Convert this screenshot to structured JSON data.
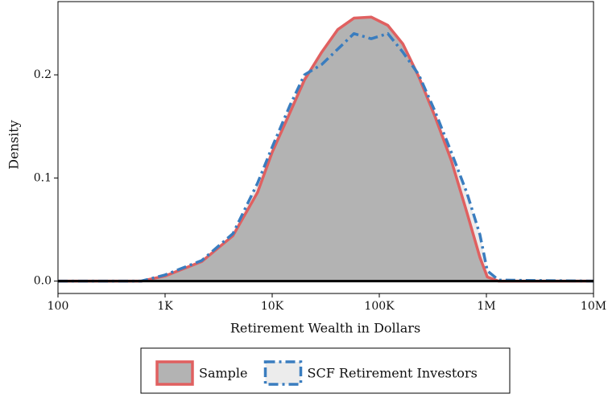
{
  "chart_data": {
    "type": "area",
    "xlabel": "Retirement Wealth in Dollars",
    "ylabel": "Density",
    "xscale": "log",
    "x": [
      100,
      600,
      1000,
      2200,
      4300,
      7300,
      10000,
      14600,
      20000,
      29000,
      41000,
      58000,
      84000,
      120000,
      166000,
      234000,
      330000,
      470000,
      660000,
      870000,
      1020000,
      1300000,
      10000000
    ],
    "series": [
      {
        "name": "SCF Retirement Investors",
        "color": "#3a7dbf",
        "fill": "#ececec",
        "linestyle": "dashdot",
        "values": [
          0,
          0,
          0.006,
          0.02,
          0.046,
          0.095,
          0.13,
          0.17,
          0.2,
          0.21,
          0.225,
          0.24,
          0.235,
          0.24,
          0.222,
          0.2,
          0.165,
          0.125,
          0.085,
          0.045,
          0.01,
          0.001,
          0
        ]
      },
      {
        "name": "Sample",
        "color": "#e06060",
        "fill": "#b3b3b3",
        "linestyle": "solid",
        "values": [
          0,
          0,
          0.005,
          0.019,
          0.044,
          0.086,
          0.125,
          0.163,
          0.195,
          0.222,
          0.244,
          0.255,
          0.256,
          0.248,
          0.23,
          0.198,
          0.16,
          0.117,
          0.066,
          0.023,
          0.004,
          0,
          0
        ]
      }
    ],
    "xlim": [
      100,
      10000000
    ],
    "xticks": [
      100,
      {
        "value": 1000,
        "label": "1K"
      },
      {
        "value": 10000,
        "label": "10K"
      },
      {
        "value": 100000,
        "label": "100K"
      },
      {
        "value": 1000000,
        "label": "1M"
      },
      {
        "value": 10000000,
        "label": "10M"
      }
    ],
    "ylim": [
      -0.012,
      0.271
    ],
    "yticks": [
      {
        "value": 0,
        "label": "0.0"
      },
      0.1,
      0.2
    ],
    "legend": "bottom"
  }
}
